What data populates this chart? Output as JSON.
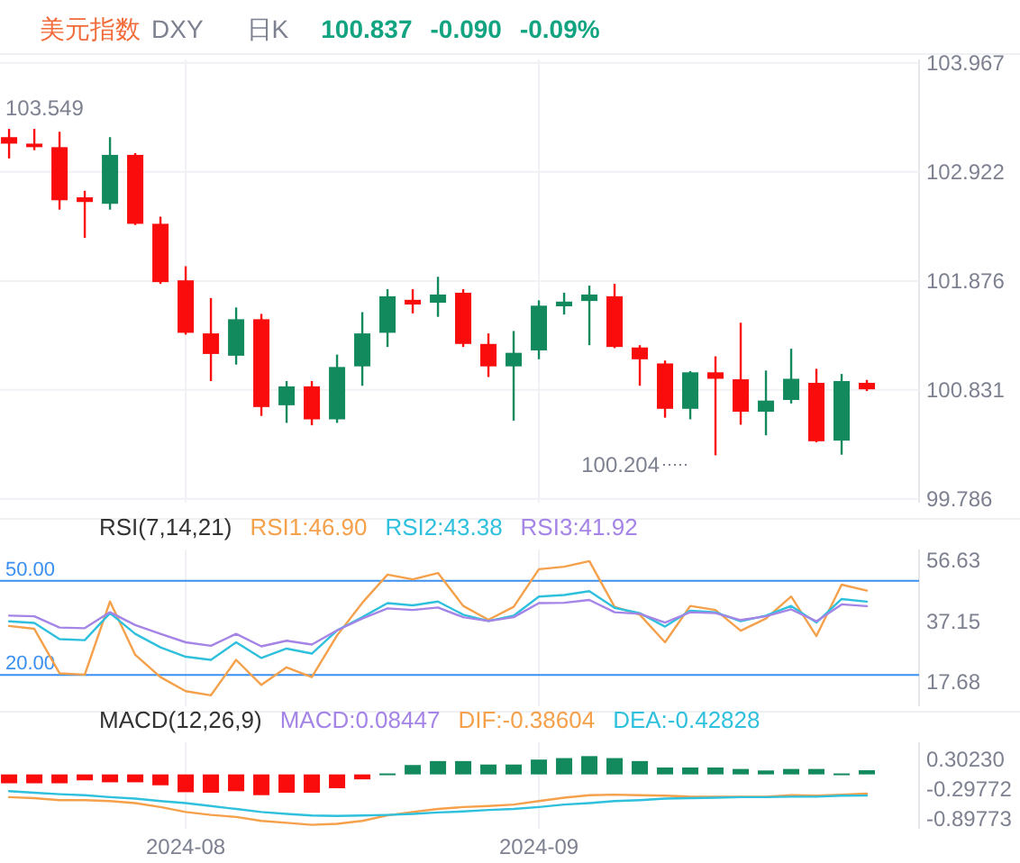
{
  "chart_data": [
    {
      "type": "other",
      "title": "美元指数",
      "annotations": [
        "DXY",
        "日K",
        "100.837",
        "-0.090",
        "-0.09%"
      ]
    },
    {
      "type": "candlestick",
      "categories": [
        null,
        null,
        null,
        null,
        null,
        null,
        null,
        "2024-08",
        null,
        null,
        null,
        null,
        null,
        null,
        null,
        null,
        null,
        null,
        null,
        null,
        null,
        "2024-09",
        null,
        null,
        null,
        null,
        null,
        null,
        null,
        null,
        null,
        null,
        null,
        null,
        null
      ],
      "ohlc": [
        [
          103.255,
          103.334,
          103.051,
          103.193
        ],
        [
          103.193,
          103.334,
          103.13,
          103.159
        ],
        [
          103.159,
          103.306,
          102.56,
          102.65
        ],
        [
          102.678,
          102.741,
          102.289,
          102.633
        ],
        [
          102.616,
          103.255,
          102.56,
          103.085
        ],
        [
          103.085,
          103.102,
          102.413,
          102.424
        ],
        [
          102.424,
          102.492,
          101.848,
          101.865
        ],
        [
          101.882,
          102.017,
          101.362,
          101.379
        ],
        [
          101.373,
          101.712,
          100.916,
          101.176
        ],
        [
          101.159,
          101.622,
          101.074,
          101.509
        ],
        [
          101.509,
          101.56,
          100.582,
          100.667
        ],
        [
          100.684,
          100.916,
          100.515,
          100.865
        ],
        [
          100.865,
          100.916,
          100.492,
          100.549
        ],
        [
          100.549,
          101.17,
          100.515,
          101.051
        ],
        [
          101.057,
          101.577,
          100.871,
          101.373
        ],
        [
          101.379,
          101.797,
          101.243,
          101.729
        ],
        [
          101.695,
          101.797,
          101.565,
          101.65
        ],
        [
          101.667,
          101.916,
          101.532,
          101.746
        ],
        [
          101.763,
          101.797,
          101.243,
          101.272
        ],
        [
          101.272,
          101.373,
          100.955,
          101.057
        ],
        [
          101.057,
          101.396,
          100.537,
          101.187
        ],
        [
          101.21,
          101.69,
          101.125,
          101.639
        ],
        [
          101.633,
          101.763,
          101.554,
          101.678
        ],
        [
          101.684,
          101.831,
          101.26,
          101.746
        ],
        [
          101.729,
          101.848,
          101.232,
          101.243
        ],
        [
          101.238,
          101.26,
          100.871,
          101.125
        ],
        [
          101.085,
          101.113,
          100.565,
          100.65
        ],
        [
          100.65,
          101.012,
          100.549,
          101.0
        ],
        [
          101.0,
          101.153,
          100.204,
          100.938
        ],
        [
          100.933,
          101.475,
          100.498,
          100.622
        ],
        [
          100.622,
          101.017,
          100.396,
          100.729
        ],
        [
          100.735,
          101.226,
          100.701,
          100.938
        ],
        [
          100.899,
          101.034,
          100.328,
          100.339
        ],
        [
          100.345,
          100.984,
          100.21,
          100.916
        ],
        [
          100.899,
          100.927,
          100.82,
          100.837
        ]
      ],
      "colors": [
        "#fa0c0c",
        "#fa0c0c",
        "#fa0c0c",
        "#fa0c0c",
        "#138a5e",
        "#fa0c0c",
        "#fa0c0c",
        "#fa0c0c",
        "#fa0c0c",
        "#138a5e",
        "#fa0c0c",
        "#138a5e",
        "#fa0c0c",
        "#138a5e",
        "#138a5e",
        "#138a5e",
        "#fa0c0c",
        "#138a5e",
        "#fa0c0c",
        "#fa0c0c",
        "#138a5e",
        "#138a5e",
        "#138a5e",
        "#138a5e",
        "#fa0c0c",
        "#fa0c0c",
        "#fa0c0c",
        "#138a5e",
        "#fa0c0c",
        "#fa0c0c",
        "#138a5e",
        "#138a5e",
        "#fa0c0c",
        "#138a5e",
        "#fa0c0c"
      ],
      "ylim": [
        99.75,
        104.0
      ],
      "yticks": [
        103.967,
        102.922,
        101.876,
        100.831,
        99.786
      ],
      "grid": true,
      "tick_labels": "y",
      "annotations": [
        "103.549",
        "100.204"
      ]
    },
    {
      "type": "line",
      "title": "RSI(7,14,21)",
      "legend": "top left",
      "categories": [
        null,
        null,
        null,
        null,
        null,
        null,
        null,
        "2024-08",
        null,
        null,
        null,
        null,
        null,
        null,
        null,
        null,
        null,
        null,
        null,
        null,
        null,
        "2024-09",
        null,
        null,
        null,
        null,
        null,
        null,
        null,
        null,
        null,
        null,
        null,
        null,
        null
      ],
      "series": [
        {
          "name": "RSI1:46.90",
          "color": "#f5a04a",
          "values": [
            35.6,
            34.7,
            20.5,
            20.1,
            43.4,
            26.4,
            19.3,
            14.8,
            13.5,
            24.8,
            16.8,
            22.4,
            19.3,
            32.6,
            43.0,
            52.0,
            50.5,
            52.5,
            42.0,
            37.6,
            41.7,
            53.7,
            54.5,
            56.3,
            41.7,
            39.2,
            30.4,
            42.0,
            40.7,
            34.1,
            38.0,
            45.0,
            32.4,
            48.8,
            46.9
          ]
        },
        {
          "name": "RSI2:43.38",
          "color": "#2ec0dc",
          "values": [
            37.1,
            36.6,
            31.4,
            31.1,
            39.7,
            33.1,
            28.8,
            25.8,
            24.8,
            30.4,
            25.4,
            28.4,
            26.8,
            34.2,
            38.4,
            42.9,
            42.2,
            43.4,
            39.2,
            37.2,
            38.9,
            45.0,
            45.5,
            46.7,
            41.4,
            39.7,
            35.4,
            40.5,
            40.0,
            37.1,
            38.9,
            42.0,
            36.7,
            44.2,
            43.38
          ]
        },
        {
          "name": "RSI3:41.92",
          "color": "#a484e6",
          "values": [
            38.9,
            38.7,
            35.1,
            34.9,
            40.0,
            35.9,
            33.1,
            30.4,
            29.3,
            33.1,
            29.1,
            30.9,
            29.7,
            34.2,
            38.0,
            41.2,
            40.7,
            41.5,
            38.4,
            37.2,
            38.4,
            42.9,
            43.0,
            43.9,
            40.0,
            39.5,
            36.7,
            40.0,
            39.7,
            37.5,
            38.7,
            40.9,
            37.1,
            42.5,
            41.92
          ]
        }
      ],
      "ylim": [
        10,
        60
      ],
      "yticks": [
        56.63,
        37.15,
        17.68
      ],
      "grid": "x",
      "tick_labels": "y",
      "ref_lines": [
        {
          "axis": "y",
          "value": 50,
          "label": "50.00",
          "color": "#3b8ff0"
        },
        {
          "axis": "y",
          "value": 20,
          "label": "20.00",
          "color": "#3b8ff0"
        }
      ]
    },
    {
      "type": "bar",
      "title": "MACD(12,26,9)",
      "legend": "top right",
      "categories": [
        null,
        null,
        null,
        null,
        null,
        null,
        null,
        "2024-08",
        null,
        null,
        null,
        null,
        null,
        null,
        null,
        null,
        null,
        null,
        null,
        null,
        null,
        "2024-09",
        null,
        null,
        null,
        null,
        null,
        null,
        null,
        null,
        null,
        null,
        null,
        null,
        null
      ],
      "series": [
        {
          "name": "MACD:0.08447",
          "type": "bar",
          "color": "#a484e6",
          "colors": [
            "#fa0c0c",
            "#fa0c0c",
            "#fa0c0c",
            "#fa0c0c",
            "#fa0c0c",
            "#fa0c0c",
            "#fa0c0c",
            "#fa0c0c",
            "#fa0c0c",
            "#fa0c0c",
            "#fa0c0c",
            "#fa0c0c",
            "#fa0c0c",
            "#fa0c0c",
            "#fa0c0c",
            "#138a5e",
            "#138a5e",
            "#138a5e",
            "#138a5e",
            "#138a5e",
            "#138a5e",
            "#138a5e",
            "#138a5e",
            "#138a5e",
            "#138a5e",
            "#138a5e",
            "#138a5e",
            "#138a5e",
            "#138a5e",
            "#138a5e",
            "#138a5e",
            "#138a5e",
            "#138a5e",
            "#138a5e",
            "#138a5e"
          ],
          "values": [
            -0.18,
            -0.18,
            -0.18,
            -0.12,
            -0.16,
            -0.16,
            -0.22,
            -0.36,
            -0.37,
            -0.34,
            -0.42,
            -0.37,
            -0.37,
            -0.28,
            -0.1,
            0.02,
            0.19,
            0.27,
            0.27,
            0.2,
            0.2,
            0.3,
            0.33,
            0.37,
            0.33,
            0.27,
            0.14,
            0.14,
            0.14,
            0.11,
            0.08,
            0.11,
            0.11,
            0.02,
            0.08447
          ]
        },
        {
          "name": "DIF:-0.38604",
          "type": "line",
          "color": "#f5a04a",
          "values": [
            -0.46,
            -0.48,
            -0.52,
            -0.52,
            -0.54,
            -0.58,
            -0.66,
            -0.76,
            -0.82,
            -0.86,
            -0.94,
            -0.98,
            -1.02,
            -1.0,
            -0.94,
            -0.83,
            -0.76,
            -0.7,
            -0.66,
            -0.64,
            -0.61,
            -0.54,
            -0.47,
            -0.42,
            -0.41,
            -0.42,
            -0.43,
            -0.45,
            -0.45,
            -0.45,
            -0.45,
            -0.42,
            -0.43,
            -0.41,
            -0.38604
          ]
        },
        {
          "name": "DEA:-0.42828",
          "type": "line",
          "color": "#2ec0dc",
          "values": [
            -0.34,
            -0.37,
            -0.4,
            -0.42,
            -0.46,
            -0.49,
            -0.54,
            -0.58,
            -0.64,
            -0.7,
            -0.76,
            -0.8,
            -0.83,
            -0.84,
            -0.83,
            -0.82,
            -0.8,
            -0.77,
            -0.75,
            -0.72,
            -0.7,
            -0.66,
            -0.61,
            -0.58,
            -0.54,
            -0.52,
            -0.49,
            -0.48,
            -0.47,
            -0.46,
            -0.46,
            -0.45,
            -0.45,
            -0.43,
            -0.42828
          ]
        }
      ],
      "ylim": [
        -1.1,
        0.65
      ],
      "yticks": [
        {
          "value": 0.3023,
          "label": "0.30230"
        },
        -0.29772,
        -0.89773
      ],
      "grid": "x"
    }
  ]
}
